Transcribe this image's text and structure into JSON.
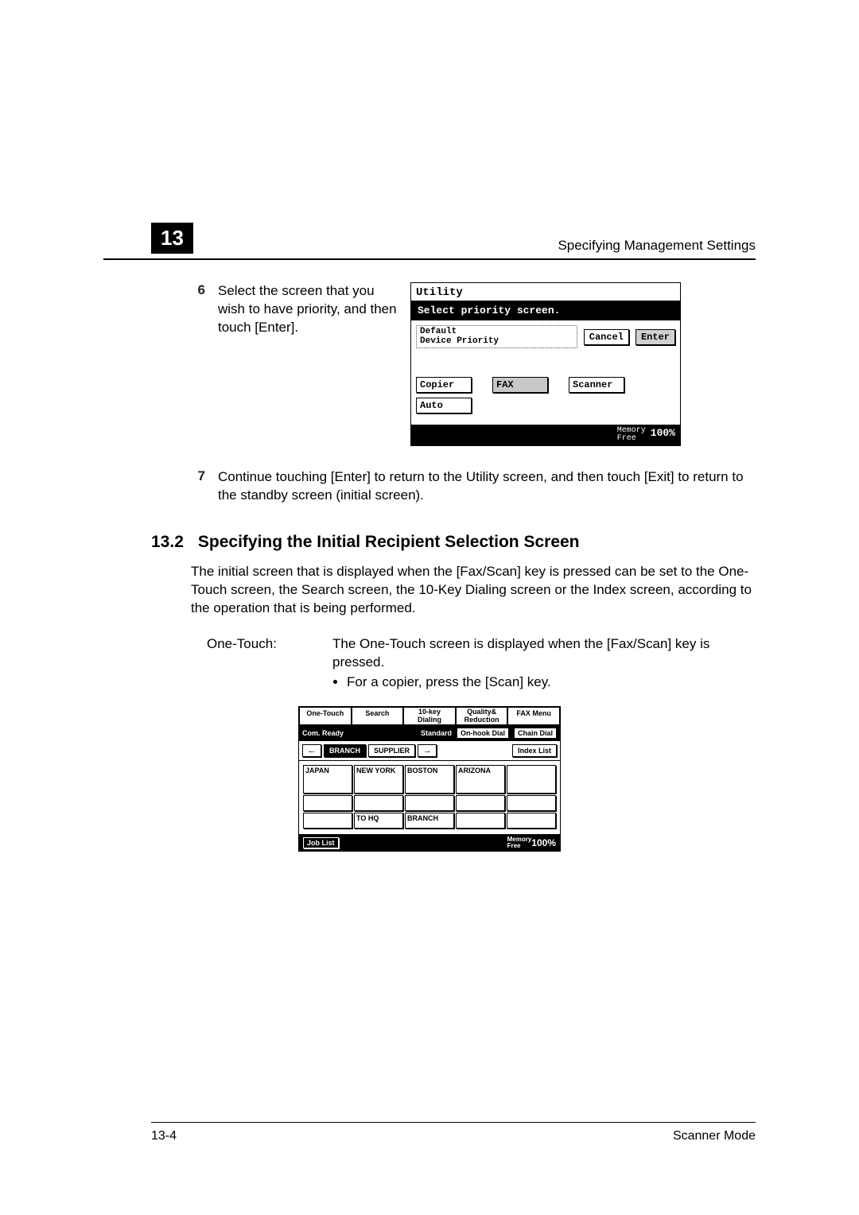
{
  "header": {
    "chapter": "13",
    "title": "Specifying Management Settings"
  },
  "step6": {
    "num": "6",
    "text": "Select the screen that you wish to have priority, and then touch [Enter]."
  },
  "utilityPanel": {
    "title": "Utility",
    "prompt": "Select priority screen.",
    "label_line1": "Default",
    "label_line2": "Device Priority",
    "cancel": "Cancel",
    "enter": "Enter",
    "cells": {
      "copier": "Copier",
      "fax": "FAX",
      "scanner": "Scanner",
      "auto": "Auto"
    },
    "memory": "Memory",
    "free": "Free",
    "pct": "100%"
  },
  "step7": {
    "num": "7",
    "text": "Continue touching [Enter] to return to the Utility screen, and then touch [Exit] to return to the standby screen (initial screen)."
  },
  "section": {
    "num": "13.2",
    "title": "Specifying the Initial Recipient Selection Screen"
  },
  "section_para": "The initial screen that is displayed when the [Fax/Scan] key is pressed can be set to the One-Touch screen, the Search screen, the 10-Key Dialing screen or the Index screen, according to the operation that is being performed.",
  "def": {
    "term": "One-Touch:",
    "text": "The One-Touch screen is displayed when the [Fax/Scan] key is pressed.",
    "bullet": "For a copier, press the [Scan] key."
  },
  "otPanel": {
    "tabs": [
      "One-Touch",
      "Search",
      "10-key\nDialing",
      "Quality&\nReduction",
      "FAX Menu"
    ],
    "ready": "Com. Ready",
    "standard": "Standard",
    "onhook": "On-hook Dial",
    "chain": "Chain Dial",
    "branch": "BRANCH",
    "supplier": "SUPPLIER",
    "indexlist": "Index List",
    "grid": [
      [
        "JAPAN",
        "NEW YORK",
        "BOSTON",
        "ARIZONA",
        ""
      ],
      [
        "",
        "",
        "",
        "",
        ""
      ],
      [
        "",
        "TO HQ",
        "BRANCH",
        "",
        ""
      ]
    ],
    "joblist": "Job List",
    "memory": "Memory",
    "free": "Free",
    "pct": "100%"
  },
  "footer": {
    "left": "13-4",
    "right": "Scanner Mode"
  }
}
